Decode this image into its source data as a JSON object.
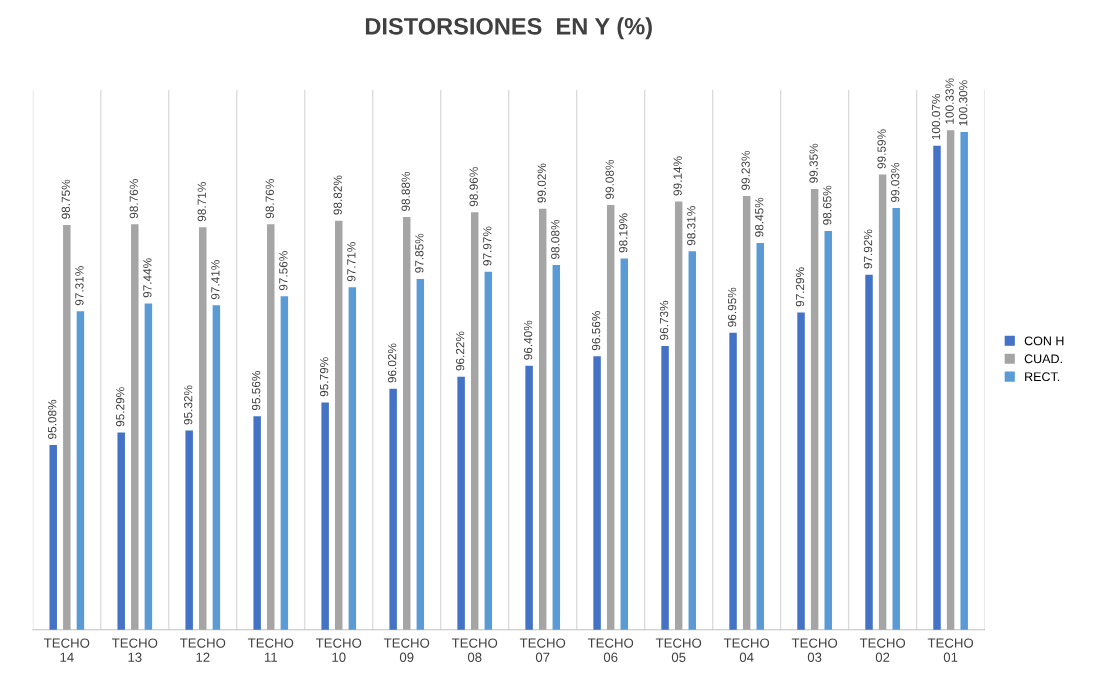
{
  "chart_data": {
    "type": "bar",
    "title": "DISTORSIONES  EN Y (%)",
    "categories": [
      "TECHO 14",
      "TECHO 13",
      "TECHO 12",
      "TECHO 11",
      "TECHO 10",
      "TECHO 09",
      "TECHO 08",
      "TECHO 07",
      "TECHO 06",
      "TECHO 05",
      "TECHO 04",
      "TECHO 03",
      "TECHO 02",
      "TECHO 01"
    ],
    "series": [
      {
        "name": "CON H",
        "color": "#4472c4",
        "values": [
          95.08,
          95.29,
          95.32,
          95.56,
          95.79,
          96.02,
          96.22,
          96.4,
          96.56,
          96.73,
          96.95,
          97.29,
          97.92,
          100.07
        ],
        "value_labels": [
          "95.08%",
          "95.29%",
          "95.32%",
          "95.56%",
          "95.79%",
          "96.02%",
          "96.22%",
          "96.40%",
          "96.56%",
          "96.73%",
          "96.95%",
          "97.29%",
          "97.92%",
          "100.07%"
        ]
      },
      {
        "name": "CUAD.",
        "color": "#a5a5a5",
        "values": [
          98.75,
          98.76,
          98.71,
          98.76,
          98.82,
          98.88,
          98.96,
          99.02,
          99.08,
          99.14,
          99.23,
          99.35,
          99.59,
          100.33
        ],
        "value_labels": [
          "98.75%",
          "98.76%",
          "98.71%",
          "98.76%",
          "98.82%",
          "98.88%",
          "98.96%",
          "99.02%",
          "99.08%",
          "99.14%",
          "99.23%",
          "99.35%",
          "99.59%",
          "100.33%"
        ]
      },
      {
        "name": "RECT.",
        "color": "#5b9bd5",
        "values": [
          97.31,
          97.44,
          97.41,
          97.56,
          97.71,
          97.85,
          97.97,
          98.08,
          98.19,
          98.31,
          98.45,
          98.65,
          99.03,
          100.3
        ],
        "value_labels": [
          "97.31%",
          "97.44%",
          "97.41%",
          "97.56%",
          "97.71%",
          "97.85%",
          "97.97%",
          "98.08%",
          "98.19%",
          "98.31%",
          "98.45%",
          "98.65%",
          "99.03%",
          "100.30%"
        ]
      }
    ],
    "ylim": [
      92,
      101
    ],
    "grid": "x",
    "legend": "right",
    "tick_labels": "x"
  }
}
